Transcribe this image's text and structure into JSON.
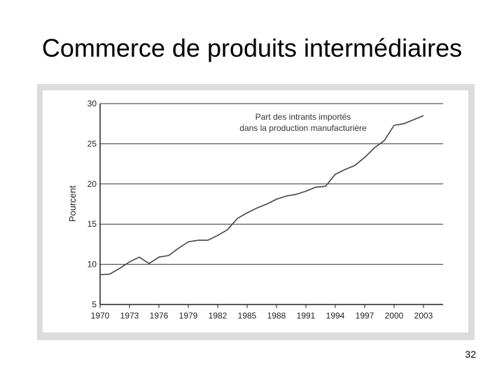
{
  "slide": {
    "title": "Commerce de produits intermédiaires",
    "page_number": "32"
  },
  "chart_data": {
    "type": "line",
    "title": "",
    "xlabel": "",
    "ylabel": "Pourcent",
    "ylim": [
      5,
      30
    ],
    "xlim": [
      1970,
      2005
    ],
    "y_ticks": [
      "5",
      "10",
      "15",
      "20",
      "25",
      "30"
    ],
    "x_ticks": [
      "1970",
      "1973",
      "1976",
      "1979",
      "1982",
      "1985",
      "1988",
      "1991",
      "1994",
      "1997",
      "2000",
      "2003"
    ],
    "grid": "horizontal",
    "annotations": [
      {
        "text": "Part des intrants importés"
      },
      {
        "text": "dans la production manufacturière"
      }
    ],
    "series": [
      {
        "color": "#444444",
        "x": [
          1970,
          1971,
          1972,
          1973,
          1974,
          1975,
          1976,
          1977,
          1978,
          1979,
          1980,
          1981,
          1982,
          1983,
          1984,
          1985,
          1986,
          1987,
          1988,
          1989,
          1990,
          1991,
          1992,
          1993,
          1994,
          1995,
          1996,
          1997,
          1998,
          1999,
          2000,
          2001,
          2002,
          2003
        ],
        "y": [
          8.7,
          8.8,
          9.5,
          10.3,
          10.9,
          10.1,
          10.9,
          11.1,
          12.0,
          12.8,
          13.0,
          13.0,
          13.6,
          14.3,
          15.7,
          16.4,
          17.0,
          17.5,
          18.1,
          18.5,
          18.7,
          19.1,
          19.6,
          19.7,
          21.2,
          21.8,
          22.3,
          23.3,
          24.5,
          25.4,
          27.3,
          27.5,
          28.0,
          28.5
        ]
      }
    ]
  }
}
